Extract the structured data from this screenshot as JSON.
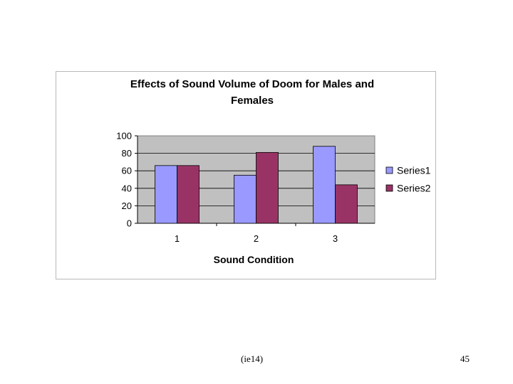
{
  "chart_data": {
    "type": "bar",
    "title_lines": [
      "Effects of Sound Volume of Doom for Males and",
      "Females"
    ],
    "xlabel": "Sound Condition",
    "ylabel": "",
    "categories": [
      "1",
      "2",
      "3"
    ],
    "series": [
      {
        "name": "Series1",
        "values": [
          66,
          55,
          88
        ],
        "color": "#9999ff"
      },
      {
        "name": "Series2",
        "values": [
          66,
          81,
          44
        ],
        "color": "#993366"
      }
    ],
    "ylim": [
      0,
      100
    ],
    "yticks": [
      "0",
      "20",
      "40",
      "60",
      "80",
      "100"
    ],
    "grid": true,
    "plot_background": "#c0c0c0",
    "legend_position": "right"
  },
  "footer": {
    "left_text": "(ie14)",
    "page_number": "45"
  }
}
